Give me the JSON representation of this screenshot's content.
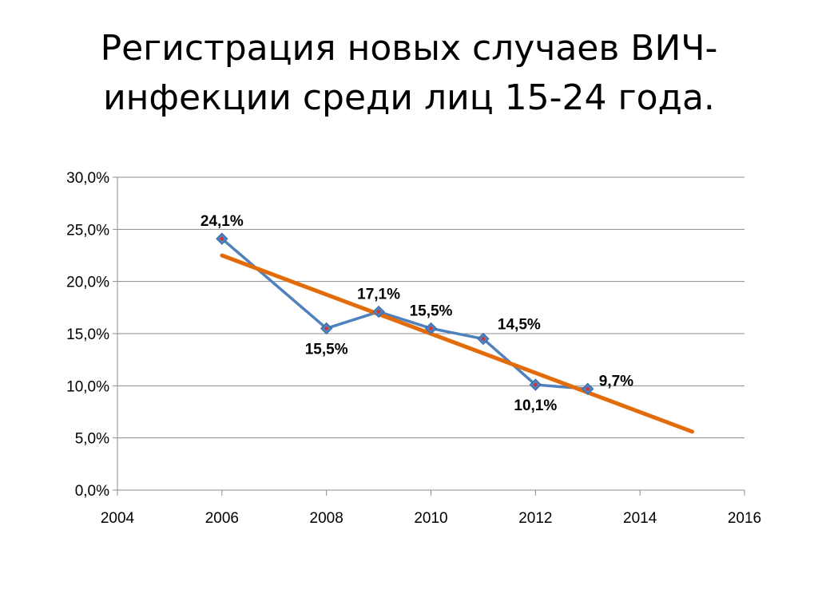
{
  "slide": {
    "title_line1": "Регистрация новых случаев ВИЧ-",
    "title_line2": "инфекции среди лиц 15-24 года."
  },
  "chart_data": {
    "type": "line",
    "title": "",
    "xlabel": "",
    "ylabel": "",
    "xlim": [
      2004,
      2016
    ],
    "ylim": [
      0,
      30
    ],
    "x_ticks": [
      2004,
      2006,
      2008,
      2010,
      2012,
      2014,
      2016
    ],
    "x_tick_labels": [
      "2004",
      "2006",
      "2008",
      "2010",
      "2012",
      "2014",
      "2016"
    ],
    "y_ticks": [
      0,
      5,
      10,
      15,
      20,
      25,
      30
    ],
    "y_tick_labels": [
      "0,0%",
      "5,0%",
      "10,0%",
      "15,0%",
      "20,0%",
      "25,0%",
      "30,0%"
    ],
    "grid": "horizontal",
    "legend": "none",
    "series": [
      {
        "x": [
          2006,
          2008,
          2009,
          2010,
          2011,
          2012,
          2013
        ],
        "y": [
          24.1,
          15.5,
          17.1,
          15.5,
          14.5,
          10.1,
          9.7
        ],
        "labels": [
          "24,1%",
          "15,5%",
          "17,1%",
          "15,5%",
          "14,5%",
          "10,1%",
          "9,7%"
        ],
        "label_positions": [
          "above",
          "below",
          "above",
          "above",
          "above-right",
          "below",
          "right"
        ],
        "color": "#4f81bd",
        "marker": "diamond",
        "marker_fill": "#4f81bd",
        "marker_center": "#e0302a"
      }
    ],
    "trendline": {
      "type": "linear",
      "x_start": 2006,
      "x_end": 2015,
      "y_start": 22.5,
      "y_end": 5.6,
      "color": "#e36c0a"
    }
  }
}
